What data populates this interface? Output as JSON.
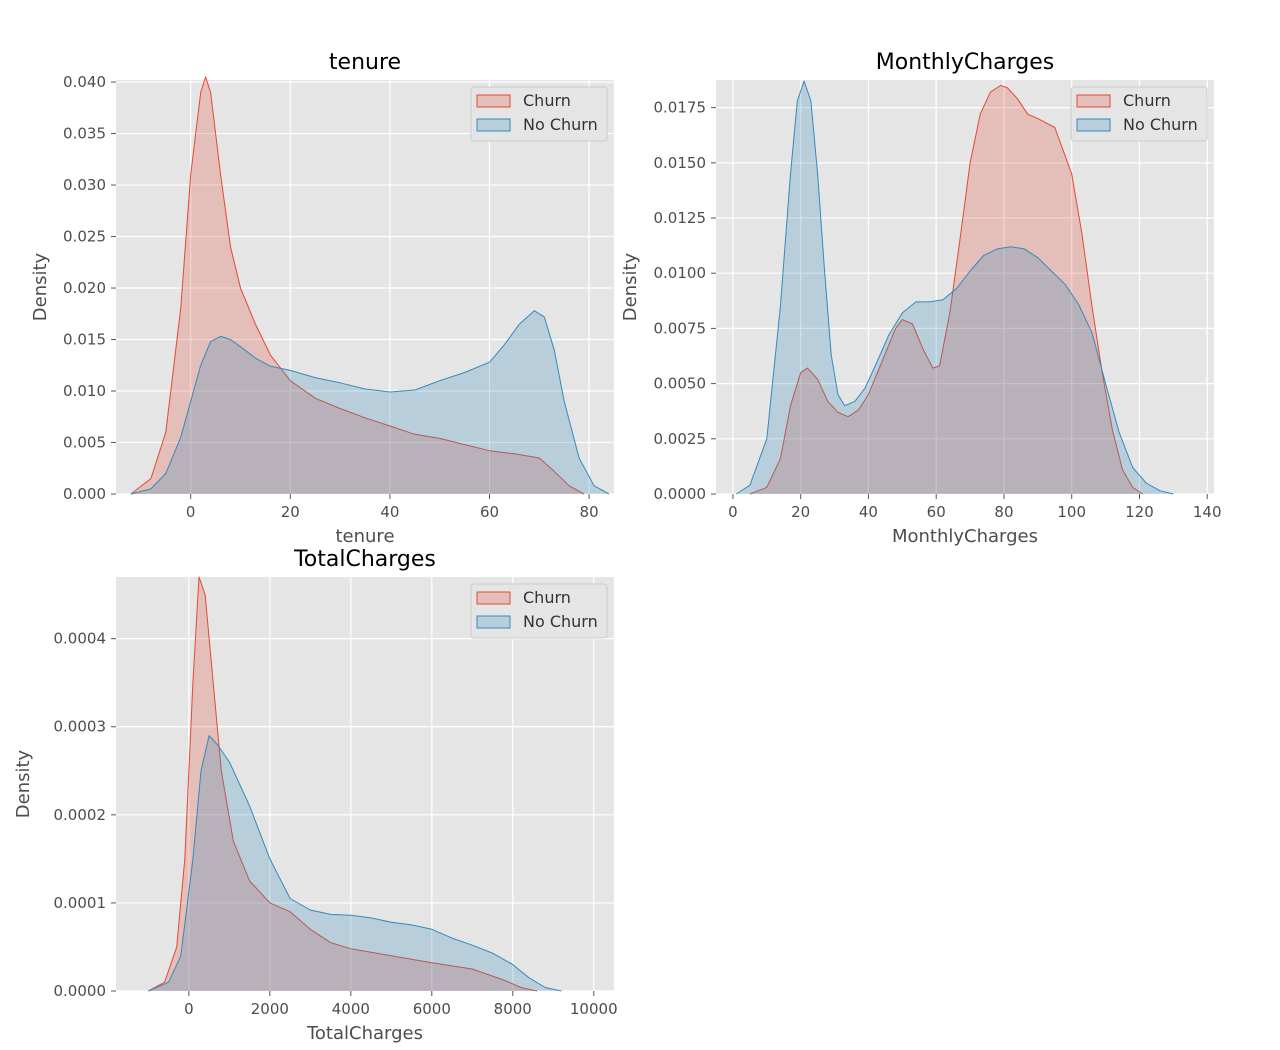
{
  "colors": {
    "churn": "#E24A33",
    "no_churn": "#348ABD",
    "panel_bg": "#E5E5E5",
    "grid": "#FFFFFF"
  },
  "chart_data": [
    {
      "type": "area",
      "title": "tenure",
      "xlabel": "tenure",
      "ylabel": "Density",
      "xlim": [
        -15,
        85
      ],
      "ylim": [
        0,
        0.0402
      ],
      "grid": true,
      "legend_position": "top-right",
      "xticks": [
        0,
        20,
        40,
        60,
        80
      ],
      "xtick_labels": [
        "0",
        "20",
        "40",
        "60",
        "80"
      ],
      "yticks": [
        0,
        0.005,
        0.01,
        0.015,
        0.02,
        0.025,
        0.03,
        0.035,
        0.04
      ],
      "ytick_labels": [
        "0.000",
        "0.005",
        "0.010",
        "0.015",
        "0.020",
        "0.025",
        "0.030",
        "0.035",
        "0.040"
      ],
      "series": [
        {
          "name": "Churn",
          "x": [
            -12,
            -8,
            -5,
            -2,
            0,
            2,
            3,
            4,
            6,
            8,
            10,
            13,
            16,
            20,
            25,
            30,
            35,
            40,
            45,
            50,
            55,
            60,
            65,
            70,
            73,
            76,
            79
          ],
          "y": [
            0,
            0.0015,
            0.006,
            0.018,
            0.031,
            0.039,
            0.0405,
            0.039,
            0.031,
            0.024,
            0.02,
            0.0165,
            0.0135,
            0.011,
            0.0093,
            0.0083,
            0.0074,
            0.0066,
            0.0058,
            0.0054,
            0.0048,
            0.0042,
            0.0039,
            0.0035,
            0.0022,
            0.0008,
            0
          ]
        },
        {
          "name": "No Churn",
          "x": [
            -12,
            -8,
            -5,
            -2,
            0,
            2,
            4,
            6,
            8,
            10,
            13,
            16,
            20,
            25,
            30,
            35,
            40,
            45,
            50,
            55,
            60,
            63,
            66,
            69,
            71,
            73,
            75,
            78,
            81,
            84
          ],
          "y": [
            0,
            0.0005,
            0.002,
            0.0055,
            0.009,
            0.0125,
            0.0148,
            0.0153,
            0.015,
            0.0143,
            0.0132,
            0.0124,
            0.012,
            0.0113,
            0.0108,
            0.0102,
            0.0099,
            0.0101,
            0.011,
            0.0118,
            0.0128,
            0.0145,
            0.0165,
            0.0178,
            0.0172,
            0.014,
            0.009,
            0.0035,
            0.0008,
            0
          ]
        }
      ]
    },
    {
      "type": "area",
      "title": "MonthlyCharges",
      "xlabel": "MonthlyCharges",
      "ylabel": "Density",
      "xlim": [
        -5,
        142
      ],
      "ylim": [
        0,
        0.01875
      ],
      "grid": true,
      "legend_position": "top-right",
      "xticks": [
        0,
        20,
        40,
        60,
        80,
        100,
        120,
        140
      ],
      "xtick_labels": [
        "0",
        "20",
        "40",
        "60",
        "80",
        "100",
        "120",
        "140"
      ],
      "yticks": [
        0,
        0.0025,
        0.005,
        0.0075,
        0.01,
        0.0125,
        0.015,
        0.0175
      ],
      "ytick_labels": [
        "0.0000",
        "0.0025",
        "0.0050",
        "0.0075",
        "0.0100",
        "0.0125",
        "0.0150",
        "0.0175"
      ],
      "series": [
        {
          "name": "Churn",
          "x": [
            5,
            10,
            14,
            17,
            20,
            22,
            25,
            28,
            31,
            34,
            37,
            40,
            44,
            48,
            50,
            53,
            56,
            59,
            61,
            64,
            67,
            70,
            73,
            76,
            79,
            81,
            84,
            87,
            90,
            95,
            100,
            103,
            106,
            109,
            112,
            115,
            118,
            121
          ],
          "y": [
            0,
            0.0003,
            0.0016,
            0.004,
            0.0055,
            0.0057,
            0.0052,
            0.0042,
            0.0037,
            0.0035,
            0.0038,
            0.0045,
            0.006,
            0.0075,
            0.0079,
            0.0077,
            0.0066,
            0.0057,
            0.0058,
            0.0082,
            0.0115,
            0.015,
            0.0172,
            0.0182,
            0.0185,
            0.0184,
            0.0179,
            0.0172,
            0.017,
            0.0166,
            0.0145,
            0.0118,
            0.0085,
            0.0055,
            0.0029,
            0.0011,
            0.0003,
            0
          ]
        },
        {
          "name": "No Churn",
          "x": [
            1,
            5,
            10,
            14,
            17,
            19,
            21,
            23,
            25,
            27,
            29,
            31,
            33,
            36,
            39,
            42,
            46,
            50,
            54,
            58,
            62,
            66,
            70,
            74,
            78,
            82,
            86,
            90,
            94,
            98,
            102,
            106,
            110,
            114,
            118,
            122,
            126,
            130
          ],
          "y": [
            0,
            0.0004,
            0.0025,
            0.0085,
            0.0145,
            0.0178,
            0.0187,
            0.0178,
            0.0145,
            0.0102,
            0.0063,
            0.0045,
            0.004,
            0.0042,
            0.0048,
            0.0058,
            0.0072,
            0.0082,
            0.0087,
            0.0087,
            0.0088,
            0.0093,
            0.0101,
            0.0108,
            0.0111,
            0.0112,
            0.0111,
            0.0107,
            0.0101,
            0.0095,
            0.0086,
            0.0073,
            0.005,
            0.0028,
            0.0012,
            0.0005,
            0.00015,
            0
          ]
        }
      ]
    },
    {
      "type": "area",
      "title": "TotalCharges",
      "xlabel": "TotalCharges",
      "ylabel": "Density",
      "xlim": [
        -1800,
        10500
      ],
      "ylim": [
        0,
        0.00047
      ],
      "grid": true,
      "legend_position": "top-right",
      "xticks": [
        0,
        2000,
        4000,
        6000,
        8000,
        10000
      ],
      "xtick_labels": [
        "0",
        "2000",
        "4000",
        "6000",
        "8000",
        "10000"
      ],
      "yticks": [
        0,
        0.0001,
        0.0002,
        0.0003,
        0.0004
      ],
      "ytick_labels": [
        "0.0000",
        "0.0001",
        "0.0002",
        "0.0003",
        "0.0004"
      ],
      "series": [
        {
          "name": "Churn",
          "x": [
            -1000,
            -600,
            -300,
            -100,
            100,
            250,
            400,
            600,
            800,
            1100,
            1500,
            2000,
            2500,
            3000,
            3500,
            4000,
            5000,
            6000,
            7000,
            7800,
            8200,
            8600
          ],
          "y": [
            0,
            1e-05,
            5e-05,
            0.00015,
            0.00035,
            0.00047,
            0.00045,
            0.00035,
            0.00025,
            0.00017,
            0.000125,
            0.0001,
            9e-05,
            7e-05,
            5.5e-05,
            4.8e-05,
            4e-05,
            3.2e-05,
            2.5e-05,
            1.2e-05,
            4e-06,
            0
          ]
        },
        {
          "name": "No Churn",
          "x": [
            -1000,
            -500,
            -200,
            100,
            300,
            500,
            700,
            1000,
            1500,
            2000,
            2500,
            3000,
            3500,
            4000,
            4500,
            5000,
            5500,
            6000,
            6500,
            7000,
            7500,
            8000,
            8400,
            8800,
            9200
          ],
          "y": [
            0,
            1e-05,
            4e-05,
            0.00015,
            0.00025,
            0.00029,
            0.00028,
            0.00026,
            0.00021,
            0.00015,
            0.000105,
            9.2e-05,
            8.7e-05,
            8.6e-05,
            8.3e-05,
            7.8e-05,
            7.5e-05,
            7e-05,
            6e-05,
            5.2e-05,
            4.3e-05,
            3e-05,
            1.5e-05,
            4e-06,
            0
          ]
        }
      ]
    }
  ]
}
